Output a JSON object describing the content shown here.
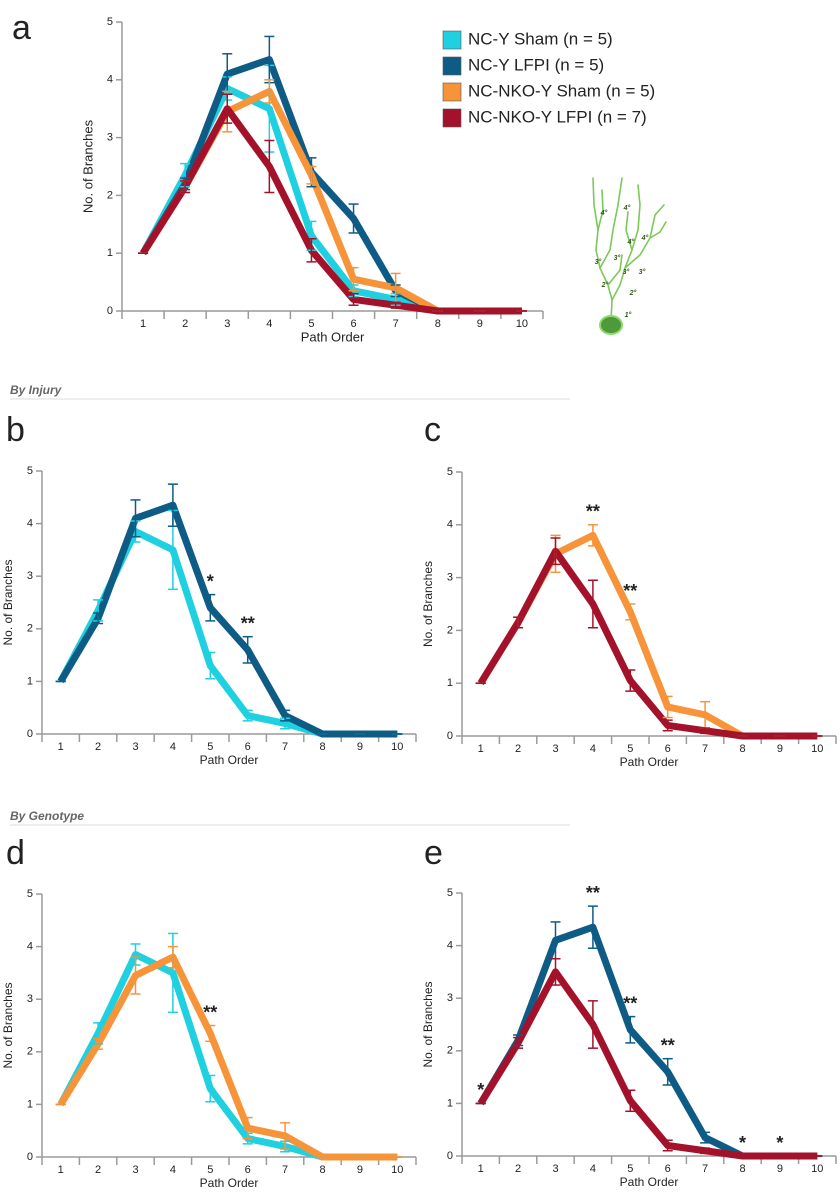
{
  "sections": [
    "By Injury",
    "By Genotype"
  ],
  "chart_data": [
    {
      "type": "line",
      "panel": "a",
      "xlabel": "Path Order",
      "ylabel": "No. of Branches",
      "x": [
        1,
        2,
        3,
        4,
        5,
        6,
        7,
        8,
        9,
        10
      ],
      "xlim": [
        0.5,
        10.5
      ],
      "ylim": [
        0,
        5
      ],
      "yticks": [
        0,
        1,
        2,
        3,
        4,
        5
      ],
      "legend_position": "right",
      "diagram_labels": [
        "4°",
        "4°",
        "4°",
        "4°",
        "3°",
        "3°",
        "3°",
        "3°",
        "2°",
        "2°",
        "1°"
      ],
      "series": [
        {
          "name": "NC-Y Sham (n = 5)",
          "color": "#1fd0e0",
          "values": [
            1,
            2.35,
            3.85,
            3.5,
            1.3,
            0.35,
            0.2,
            0,
            0,
            0
          ],
          "errors": [
            0,
            0.2,
            0.2,
            0.75,
            0.25,
            0.1,
            0.1,
            0,
            0,
            0
          ]
        },
        {
          "name": "NC-Y LFPI (n = 5)",
          "color": "#0e5c86",
          "values": [
            1,
            2.2,
            4.1,
            4.35,
            2.4,
            1.6,
            0.35,
            0,
            0,
            0
          ],
          "errors": [
            0,
            0.1,
            0.35,
            0.4,
            0.25,
            0.25,
            0.1,
            0,
            0,
            0
          ]
        },
        {
          "name": "NC-NKO-Y Sham (n = 5)",
          "color": "#f7943a",
          "values": [
            1,
            2.15,
            3.45,
            3.8,
            2.35,
            0.55,
            0.4,
            0,
            0,
            0
          ],
          "errors": [
            0,
            0.1,
            0.35,
            0.2,
            0.15,
            0.2,
            0.25,
            0,
            0,
            0
          ]
        },
        {
          "name": "NC-NKO-Y LFPI (n = 7)",
          "color": "#a3122a",
          "values": [
            1,
            2.15,
            3.5,
            2.5,
            1.05,
            0.2,
            0.1,
            0,
            0,
            0
          ],
          "errors": [
            0,
            0.1,
            0.25,
            0.45,
            0.2,
            0.1,
            0.05,
            0,
            0,
            0
          ]
        }
      ]
    },
    {
      "type": "line",
      "panel": "b",
      "xlabel": "Path Order",
      "ylabel": "No. of Branches",
      "x": [
        1,
        2,
        3,
        4,
        5,
        6,
        7,
        8,
        9,
        10
      ],
      "xlim": [
        0.5,
        10.5
      ],
      "ylim": [
        0,
        5
      ],
      "yticks": [
        0,
        1,
        2,
        3,
        4,
        5
      ],
      "annotations": [
        {
          "x": 5,
          "text": "*"
        },
        {
          "x": 6,
          "text": "**"
        }
      ],
      "series": [
        {
          "color": "#1fd0e0",
          "values": [
            1,
            2.35,
            3.85,
            3.5,
            1.3,
            0.35,
            0.2,
            0,
            0,
            0
          ],
          "errors": [
            0,
            0.2,
            0.2,
            0.75,
            0.25,
            0.1,
            0.1,
            0,
            0,
            0
          ]
        },
        {
          "color": "#0e5c86",
          "values": [
            1,
            2.2,
            4.1,
            4.35,
            2.4,
            1.6,
            0.35,
            0,
            0,
            0
          ],
          "errors": [
            0,
            0.1,
            0.35,
            0.4,
            0.25,
            0.25,
            0.1,
            0,
            0,
            0
          ]
        }
      ]
    },
    {
      "type": "line",
      "panel": "c",
      "xlabel": "Path Order",
      "ylabel": "No. of Branches",
      "x": [
        1,
        2,
        3,
        4,
        5,
        6,
        7,
        8,
        9,
        10
      ],
      "xlim": [
        0.5,
        10.5
      ],
      "ylim": [
        0,
        5
      ],
      "yticks": [
        0,
        1,
        2,
        3,
        4,
        5
      ],
      "annotations": [
        {
          "x": 4,
          "text": "**"
        },
        {
          "x": 5,
          "text": "**"
        }
      ],
      "series": [
        {
          "color": "#f7943a",
          "values": [
            1,
            2.15,
            3.45,
            3.8,
            2.35,
            0.55,
            0.4,
            0,
            0,
            0
          ],
          "errors": [
            0,
            0.1,
            0.35,
            0.2,
            0.15,
            0.2,
            0.25,
            0,
            0,
            0
          ]
        },
        {
          "color": "#a3122a",
          "values": [
            1,
            2.15,
            3.5,
            2.5,
            1.05,
            0.2,
            0.1,
            0,
            0,
            0
          ],
          "errors": [
            0,
            0.1,
            0.25,
            0.45,
            0.2,
            0.1,
            0.05,
            0,
            0,
            0
          ]
        }
      ]
    },
    {
      "type": "line",
      "panel": "d",
      "xlabel": "Path Order",
      "ylabel": "No. of Branches",
      "x": [
        1,
        2,
        3,
        4,
        5,
        6,
        7,
        8,
        9,
        10
      ],
      "xlim": [
        0.5,
        10.5
      ],
      "ylim": [
        0,
        5
      ],
      "yticks": [
        0,
        1,
        2,
        3,
        4,
        5
      ],
      "annotations": [
        {
          "x": 5,
          "text": "**"
        }
      ],
      "series": [
        {
          "color": "#1fd0e0",
          "values": [
            1,
            2.35,
            3.85,
            3.5,
            1.3,
            0.35,
            0.2,
            0,
            0,
            0
          ],
          "errors": [
            0,
            0.2,
            0.2,
            0.75,
            0.25,
            0.1,
            0.1,
            0,
            0,
            0
          ]
        },
        {
          "color": "#f7943a",
          "values": [
            1,
            2.15,
            3.45,
            3.8,
            2.35,
            0.55,
            0.4,
            0,
            0,
            0
          ],
          "errors": [
            0,
            0.1,
            0.35,
            0.2,
            0.15,
            0.2,
            0.25,
            0,
            0,
            0
          ]
        }
      ]
    },
    {
      "type": "line",
      "panel": "e",
      "xlabel": "Path Order",
      "ylabel": "No. of Branches",
      "x": [
        1,
        2,
        3,
        4,
        5,
        6,
        7,
        8,
        9,
        10
      ],
      "xlim": [
        0.5,
        10.5
      ],
      "ylim": [
        0,
        5
      ],
      "yticks": [
        0,
        1,
        2,
        3,
        4,
        5
      ],
      "annotations": [
        {
          "x": 1,
          "text": "*"
        },
        {
          "x": 4,
          "text": "**"
        },
        {
          "x": 5,
          "text": "**"
        },
        {
          "x": 6,
          "text": "**"
        },
        {
          "x": 8,
          "text": "*"
        },
        {
          "x": 9,
          "text": "*"
        }
      ],
      "series": [
        {
          "color": "#0e5c86",
          "values": [
            1,
            2.2,
            4.1,
            4.35,
            2.4,
            1.6,
            0.35,
            0,
            0,
            0
          ],
          "errors": [
            0,
            0.1,
            0.35,
            0.4,
            0.25,
            0.25,
            0.1,
            0,
            0,
            0
          ]
        },
        {
          "color": "#a3122a",
          "values": [
            1,
            2.15,
            3.5,
            2.5,
            1.05,
            0.2,
            0.1,
            0,
            0,
            0
          ],
          "errors": [
            0,
            0.1,
            0.25,
            0.45,
            0.2,
            0.1,
            0.05,
            0,
            0,
            0
          ]
        }
      ]
    }
  ]
}
